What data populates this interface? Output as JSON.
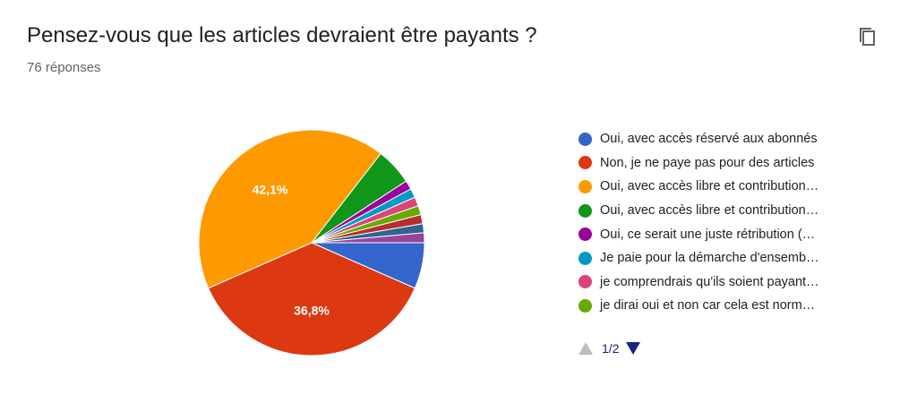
{
  "header": {
    "title": "Pensez-vous que les articles devraient être payants ?",
    "responses": "76 réponses"
  },
  "icons": {
    "copy": "copy-icon",
    "prev": "triangle-up-icon",
    "next": "triangle-down-icon"
  },
  "pager": {
    "page": "1/2"
  },
  "chart_data": {
    "type": "pie",
    "start": "three-o-clock",
    "direction": "clockwise",
    "slices": [
      {
        "label": "Oui, avec accès réservé aux abonnés",
        "value": 6.6,
        "color": "#3366cc",
        "data_label": ""
      },
      {
        "label": "Non, je ne paye pas pour des articles",
        "value": 36.8,
        "color": "#dc3912",
        "data_label": "36,8%"
      },
      {
        "label": "Oui, avec accès libre et contribution…",
        "value": 42.1,
        "color": "#ff9900",
        "data_label": "42,1%"
      },
      {
        "label": "Oui, avec accès libre et contribution…",
        "value": 5.3,
        "color": "#109618",
        "data_label": ""
      },
      {
        "label": "Oui, ce serait une juste rétribution (…",
        "value": 1.3,
        "color": "#990099",
        "data_label": ""
      },
      {
        "label": "Je paie pour la démarche d'ensemb…",
        "value": 1.3,
        "color": "#0099c6",
        "data_label": ""
      },
      {
        "label": "je comprendrais qu'ils soient payant…",
        "value": 1.3,
        "color": "#dd4477",
        "data_label": ""
      },
      {
        "label": "je dirai oui et non car cela est norm…",
        "value": 1.3,
        "color": "#66aa00",
        "data_label": ""
      },
      {
        "label": "",
        "value": 1.3,
        "color": "#b82e2e",
        "data_label": ""
      },
      {
        "label": "",
        "value": 1.3,
        "color": "#316395",
        "data_label": ""
      },
      {
        "label": "",
        "value": 1.4,
        "color": "#994499",
        "data_label": ""
      }
    ],
    "legend_visible_count": 8,
    "legend_position": "right"
  }
}
